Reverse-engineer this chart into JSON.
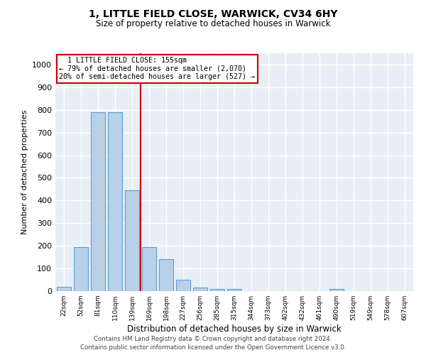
{
  "title": "1, LITTLE FIELD CLOSE, WARWICK, CV34 6HY",
  "subtitle": "Size of property relative to detached houses in Warwick",
  "xlabel": "Distribution of detached houses by size in Warwick",
  "ylabel": "Number of detached properties",
  "categories": [
    "22sqm",
    "52sqm",
    "81sqm",
    "110sqm",
    "139sqm",
    "169sqm",
    "198sqm",
    "227sqm",
    "256sqm",
    "285sqm",
    "315sqm",
    "344sqm",
    "373sqm",
    "402sqm",
    "432sqm",
    "461sqm",
    "490sqm",
    "519sqm",
    "549sqm",
    "578sqm",
    "607sqm"
  ],
  "values": [
    20,
    195,
    790,
    790,
    445,
    195,
    140,
    50,
    15,
    10,
    10,
    0,
    0,
    0,
    0,
    0,
    10,
    0,
    0,
    0,
    0
  ],
  "bar_color": "#b8d0e8",
  "bar_edge_color": "#5a9fd4",
  "red_line_x": 4.5,
  "red_line_color": "#cc0000",
  "annotation_line1": "  1 LITTLE FIELD CLOSE: 155sqm",
  "annotation_line2": "← 79% of detached houses are smaller (2,070)",
  "annotation_line3": "20% of semi-detached houses are larger (527) →",
  "annotation_box_color": "#cc0000",
  "ylim": [
    0,
    1050
  ],
  "yticks": [
    0,
    100,
    200,
    300,
    400,
    500,
    600,
    700,
    800,
    900,
    1000
  ],
  "bg_color": "#e8eef5",
  "grid_color": "#ffffff",
  "footer1": "Contains HM Land Registry data © Crown copyright and database right 2024.",
  "footer2": "Contains public sector information licensed under the Open Government Licence v3.0."
}
